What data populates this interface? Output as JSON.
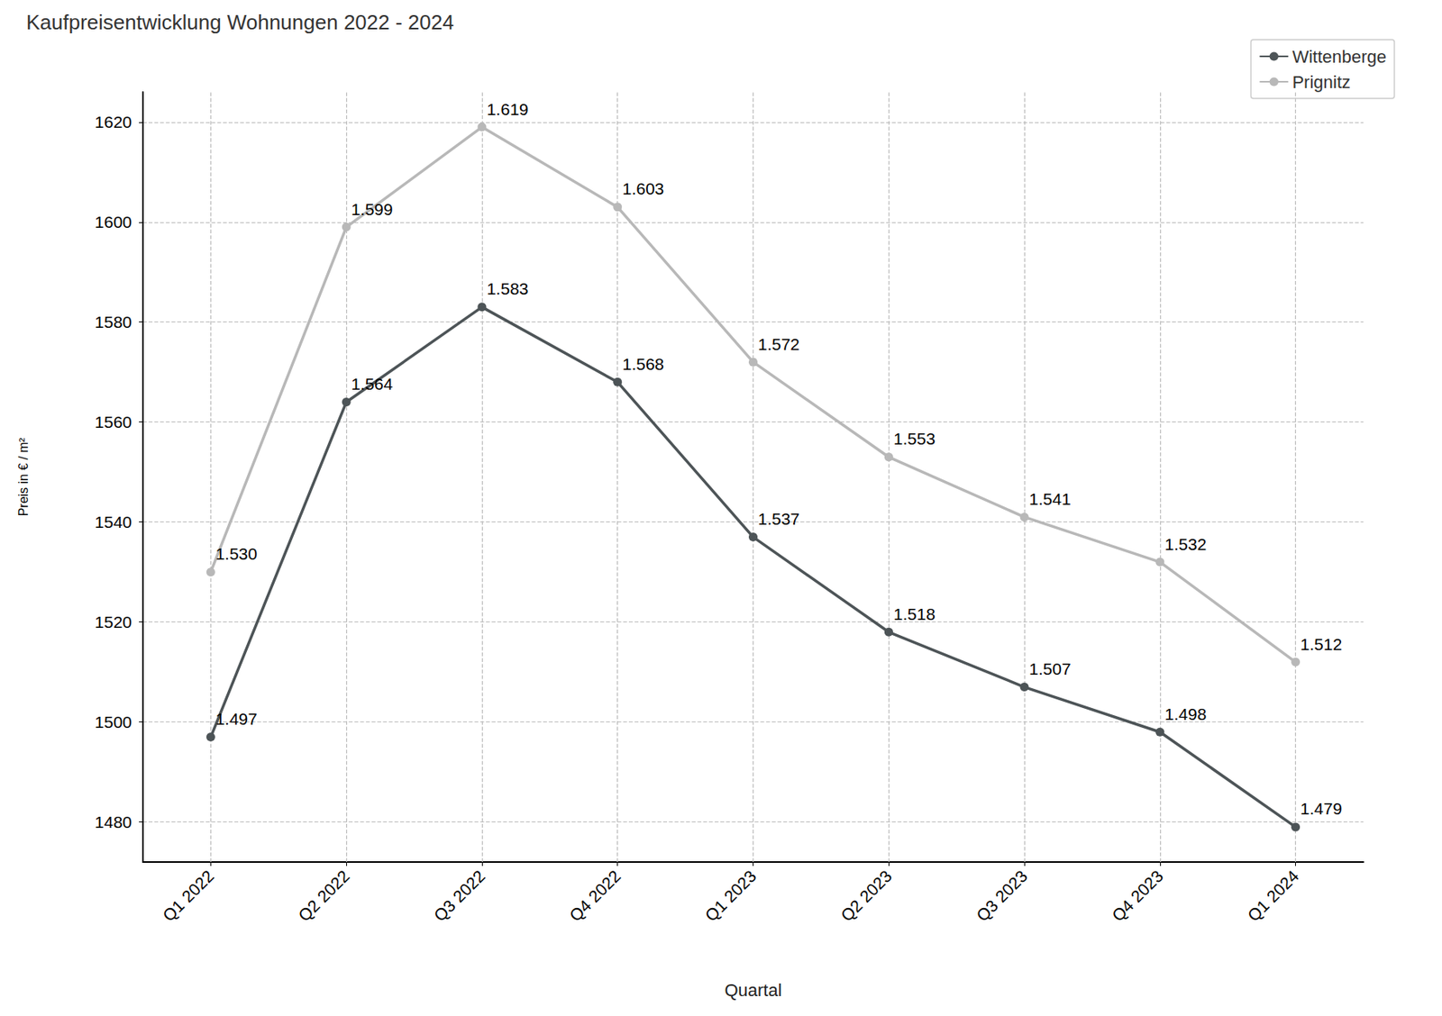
{
  "chart_data": {
    "type": "line",
    "title": "Kaufpreisentwicklung Wohnungen 2022 - 2024",
    "x_label": "Quartal",
    "y_label": "Preis in € / m²",
    "categories": [
      "Q1 2022",
      "Q2 2022",
      "Q3 2022",
      "Q4 2022",
      "Q1 2023",
      "Q2 2023",
      "Q3 2023",
      "Q4 2023",
      "Q1 2024"
    ],
    "series": [
      {
        "name": "Wittenberge",
        "color": "#4d5457",
        "values": [
          1497,
          1564,
          1583,
          1568,
          1537,
          1518,
          1507,
          1498,
          1479
        ],
        "value_labels": [
          "1.497",
          "1.564",
          "1.583",
          "1.568",
          "1.537",
          "1.518",
          "1.507",
          "1.498",
          "1.479"
        ]
      },
      {
        "name": "Prignitz",
        "color": "#b8b8b8",
        "values": [
          1530,
          1599,
          1619,
          1603,
          1572,
          1553,
          1541,
          1532,
          1512
        ],
        "value_labels": [
          "1.530",
          "1.599",
          "1.619",
          "1.603",
          "1.572",
          "1.553",
          "1.541",
          "1.532",
          "1.512"
        ]
      }
    ],
    "ylim": [
      1472,
      1626
    ],
    "yticks": [
      1480,
      1500,
      1520,
      1540,
      1560,
      1580,
      1600,
      1620
    ],
    "grid": true,
    "legend": "upper right",
    "data_labels": true,
    "marker": "circle"
  }
}
